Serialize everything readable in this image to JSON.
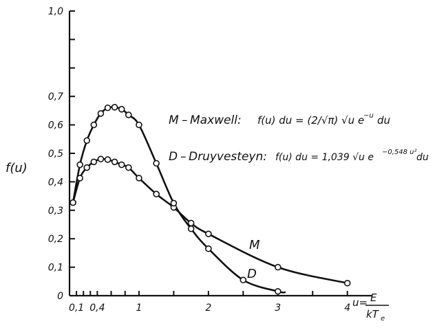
{
  "chart_data": {
    "type": "line",
    "ylabel": "f(u)",
    "xlabel": {
      "prefix": "u=",
      "numerator": "E",
      "denominator": "kT",
      "denominator_sub": "e"
    },
    "xlim": [
      0,
      4.35
    ],
    "ylim": [
      0,
      1.0
    ],
    "x_ticks": [
      {
        "value": 0.1,
        "label": "0,1"
      },
      {
        "value": 0.2,
        "label": ""
      },
      {
        "value": 0.3,
        "label": ""
      },
      {
        "value": 0.4,
        "label": "0,4"
      },
      {
        "value": 0.6,
        "label": ""
      },
      {
        "value": 0.8,
        "label": ""
      },
      {
        "value": 1.0,
        "label": "1"
      },
      {
        "value": 1.5,
        "label": ""
      },
      {
        "value": 2.0,
        "label": "2"
      },
      {
        "value": 2.5,
        "label": ""
      },
      {
        "value": 3.0,
        "label": "3"
      },
      {
        "value": 3.5,
        "label": ""
      },
      {
        "value": 4.0,
        "label": "4"
      }
    ],
    "y_ticks": [
      {
        "value": 0.0,
        "label": "0"
      },
      {
        "value": 0.1,
        "label": "0,1"
      },
      {
        "value": 0.2,
        "label": "0,2"
      },
      {
        "value": 0.3,
        "label": "0,3"
      },
      {
        "value": 0.4,
        "label": "0,4"
      },
      {
        "value": 0.5,
        "label": "0,5"
      },
      {
        "value": 0.6,
        "label": "0,6"
      },
      {
        "value": 0.7,
        "label": "0,7"
      },
      {
        "value": 0.8,
        "label": ""
      },
      {
        "value": 0.9,
        "label": ""
      },
      {
        "value": 1.0,
        "label": "1,0"
      }
    ],
    "series": [
      {
        "name": "M",
        "x": [
          0.05,
          0.15,
          0.25,
          0.35,
          0.45,
          0.55,
          0.65,
          0.75,
          0.85,
          1.0,
          1.25,
          1.5,
          1.75,
          2.0,
          3.0,
          4.0
        ],
        "y": [
          0.327,
          0.413,
          0.45,
          0.47,
          0.48,
          0.478,
          0.47,
          0.46,
          0.45,
          0.413,
          0.357,
          0.31,
          0.255,
          0.217,
          0.1,
          0.044
        ]
      },
      {
        "name": "D",
        "x": [
          0.05,
          0.15,
          0.25,
          0.35,
          0.45,
          0.55,
          0.65,
          0.75,
          0.85,
          1.0,
          1.25,
          1.5,
          1.75,
          2.0,
          2.5,
          3.0,
          3.1
        ],
        "y": [
          0.327,
          0.46,
          0.545,
          0.6,
          0.64,
          0.66,
          0.662,
          0.655,
          0.635,
          0.6,
          0.465,
          0.325,
          0.235,
          0.165,
          0.055,
          0.015,
          0.012
        ]
      }
    ],
    "annotations": {
      "legend_m_key": "M",
      "legend_m_name": "Maxwell:",
      "legend_m_formula": "f(u) du = (2/√π) √u e",
      "legend_m_exp": "−u",
      "legend_m_tail": "du",
      "legend_d_key": "D",
      "legend_d_name": "Druyvesteyn:",
      "legend_d_formula": "f(u) du = 1,039 √u e",
      "legend_d_exp": "−0,548 u²",
      "legend_d_tail": "du",
      "curve_label_m": "M",
      "curve_label_d": "D"
    }
  }
}
